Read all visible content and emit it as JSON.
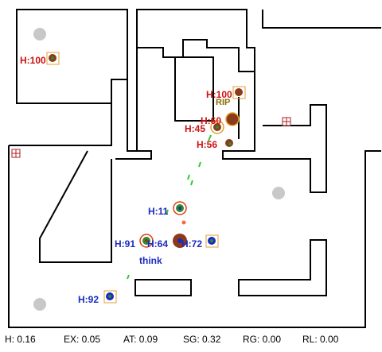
{
  "game": {
    "bots": [
      {
        "team": "red",
        "health_label": "H:100"
      },
      {
        "team": "red",
        "health_label": "H:100"
      },
      {
        "team": "red",
        "health_label": "H:60"
      },
      {
        "team": "red",
        "health_label": "H:45"
      },
      {
        "team": "red",
        "health_label": "H:56"
      },
      {
        "team": "blue",
        "health_label": "H:11"
      },
      {
        "team": "blue",
        "health_label": "H:91"
      },
      {
        "team": "blue",
        "health_label": "H:64"
      },
      {
        "team": "blue",
        "health_label": "H:72"
      },
      {
        "team": "blue",
        "health_label": "H:92"
      }
    ],
    "rip_text": "RIP",
    "think_text": "think"
  },
  "status_bar": {
    "health": "H: 0.16",
    "ex": "EX: 0.05",
    "at": "AT: 0.09",
    "sg": "SG: 0.32",
    "rg": "RG: 0.00",
    "rl": "RL: 0.00"
  },
  "colors": {
    "red_team": "#cc1111",
    "blue_team": "#1a2bbf",
    "bot_body": "#8b3a1a",
    "bot_green": "#2e8b2e",
    "item_box": "#e0a030",
    "projectile": "#33cc33",
    "spawn_pad": "#c8c8c8"
  }
}
